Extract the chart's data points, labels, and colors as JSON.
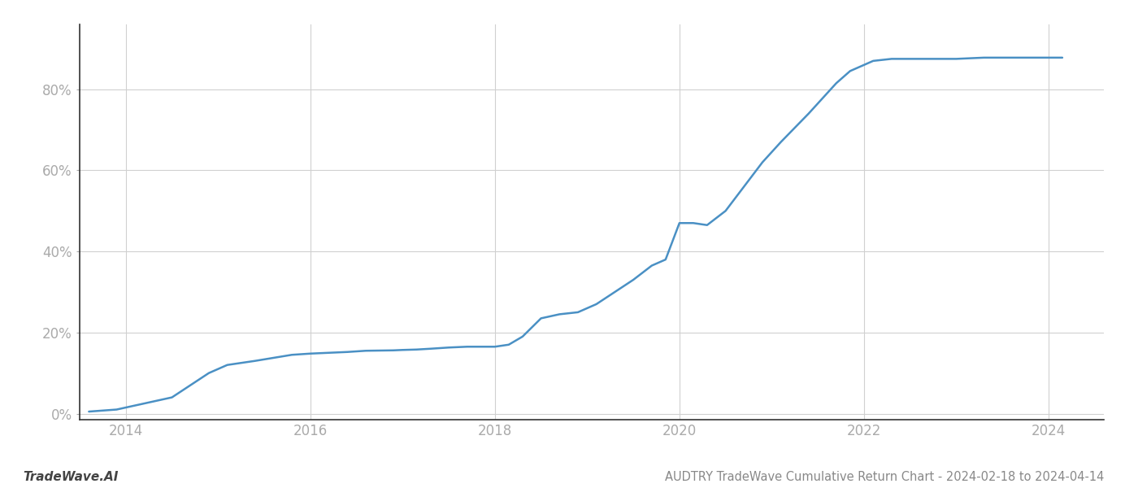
{
  "title": "AUDTRY TradeWave Cumulative Return Chart - 2024-02-18 to 2024-04-14",
  "watermark": "TradeWave.AI",
  "line_color": "#4a90c4",
  "background_color": "#ffffff",
  "grid_color": "#d0d0d0",
  "x_data": [
    2013.6,
    2013.9,
    2014.1,
    2014.5,
    2014.9,
    2015.1,
    2015.4,
    2015.8,
    2016.0,
    2016.2,
    2016.4,
    2016.6,
    2016.9,
    2017.0,
    2017.15,
    2017.3,
    2017.5,
    2017.7,
    2017.85,
    2018.0,
    2018.15,
    2018.3,
    2018.5,
    2018.7,
    2018.9,
    2019.1,
    2019.3,
    2019.5,
    2019.7,
    2019.85,
    2020.0,
    2020.15,
    2020.3,
    2020.5,
    2020.7,
    2020.9,
    2021.1,
    2021.4,
    2021.7,
    2021.85,
    2022.0,
    2022.1,
    2022.3,
    2022.5,
    2022.8,
    2023.0,
    2023.3,
    2023.6,
    2023.9,
    2024.15
  ],
  "y_data": [
    0.005,
    0.01,
    0.02,
    0.04,
    0.1,
    0.12,
    0.13,
    0.145,
    0.148,
    0.15,
    0.152,
    0.155,
    0.156,
    0.157,
    0.158,
    0.16,
    0.163,
    0.165,
    0.165,
    0.165,
    0.17,
    0.19,
    0.235,
    0.245,
    0.25,
    0.27,
    0.3,
    0.33,
    0.365,
    0.38,
    0.47,
    0.47,
    0.465,
    0.5,
    0.56,
    0.62,
    0.67,
    0.74,
    0.815,
    0.845,
    0.86,
    0.87,
    0.875,
    0.875,
    0.875,
    0.875,
    0.878,
    0.878,
    0.878,
    0.878
  ],
  "xlim": [
    2013.5,
    2024.6
  ],
  "ylim": [
    -0.015,
    0.96
  ],
  "yticks": [
    0.0,
    0.2,
    0.4,
    0.6,
    0.8
  ],
  "ytick_labels": [
    "0%",
    "20%",
    "40%",
    "60%",
    "80%"
  ],
  "xticks": [
    2014,
    2016,
    2018,
    2020,
    2022,
    2024
  ],
  "tick_color": "#aaaaaa",
  "left_spine_color": "#333333",
  "bottom_spine_color": "#333333",
  "label_fontsize": 12,
  "title_fontsize": 10.5,
  "watermark_fontsize": 11,
  "line_width": 1.8
}
